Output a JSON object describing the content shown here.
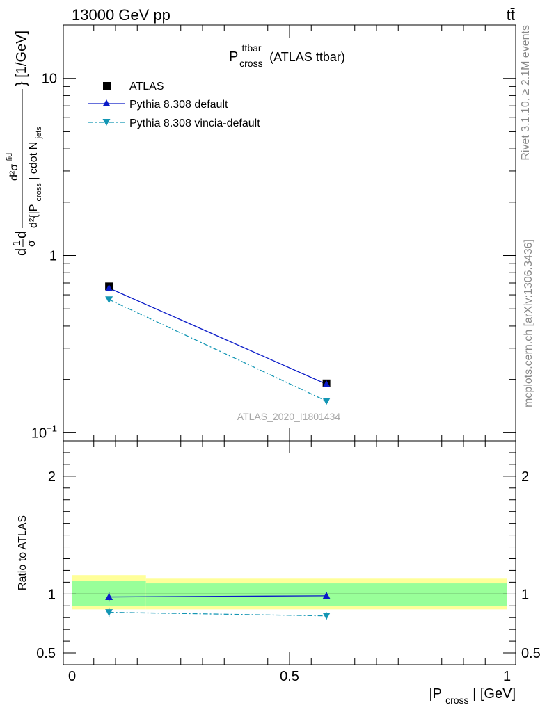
{
  "header": {
    "left": "13000 GeV pp",
    "right": "tt̄"
  },
  "title": {
    "main": "P",
    "sup": "ttbar",
    "sub": "cross",
    "suffix": "(ATLAS ttbar)"
  },
  "side_text": {
    "rivet": "Rivet 3.1.10, ≥ 2.1M events",
    "mcplots": "mcplots.cern.ch [arXiv:1306.3436]"
  },
  "analysis_id": "ATLAS_2020_I1801434",
  "colors": {
    "data": "#000000",
    "default": "#0a1bc8",
    "vincia": "#1396b4",
    "band_inner": "#99ff99",
    "band_outer": "#ffff99"
  },
  "chart_data": [
    {
      "type": "scatter",
      "panel": "main",
      "ylabel": {
        "part1": "d",
        "frac_num": "1",
        "frac_den": "σ",
        "part2": "d",
        "inner_num": "d²σ",
        "inner_num_sup": "fid",
        "inner_den": "d²{|P",
        "inner_den_sub": "cross",
        "inner_den_rest": "| cdot N",
        "inner_den_sub2": "jets",
        "unit": "} [1/GeV]"
      },
      "yscale": "log",
      "ylim": [
        0.09,
        20
      ],
      "xlim": [
        -0.02,
        1.02
      ],
      "ytick_labels": [
        {
          "v": 0.1,
          "base": "10",
          "exp": "−1"
        },
        {
          "v": 1,
          "base": "1",
          "exp": ""
        },
        {
          "v": 10,
          "base": "10",
          "exp": ""
        }
      ],
      "legend_position": "top-left",
      "series": [
        {
          "name": "ATLAS",
          "key": "data",
          "marker": "square",
          "line": "none",
          "x": [
            0.085,
            0.585
          ],
          "y": [
            0.67,
            0.19
          ]
        },
        {
          "name": "Pythia 8.308 default",
          "key": "default",
          "marker": "triangle-up",
          "line": "solid",
          "x": [
            0.085,
            0.585
          ],
          "y": [
            0.655,
            0.188
          ]
        },
        {
          "name": "Pythia 8.308 vincia-default",
          "key": "vincia",
          "marker": "triangle-down",
          "line": "dashdot",
          "x": [
            0.085,
            0.585
          ],
          "y": [
            0.565,
            0.151
          ]
        }
      ]
    },
    {
      "type": "scatter",
      "panel": "ratio",
      "ylabel": "Ratio to ATLAS",
      "xlabel": {
        "main": "|P",
        "sub": "cross",
        "rest": "| [GeV]"
      },
      "ylim": [
        0.4,
        2.3
      ],
      "xlim": [
        -0.02,
        1.02
      ],
      "ytick_labels": [
        {
          "v": 0.5,
          "label": "0.5"
        },
        {
          "v": 1,
          "label": "1"
        },
        {
          "v": 2,
          "label": "2"
        }
      ],
      "xtick_labels": [
        {
          "v": 0,
          "label": "0"
        },
        {
          "v": 0.5,
          "label": "0.5"
        },
        {
          "v": 1,
          "label": "1"
        }
      ],
      "bands": [
        {
          "x0": 0.0,
          "x1": 0.17,
          "inner": [
            0.9,
            1.11
          ],
          "outer": [
            0.87,
            1.16
          ]
        },
        {
          "x0": 0.17,
          "x1": 1.0,
          "inner": [
            0.9,
            1.09
          ],
          "outer": [
            0.87,
            1.13
          ]
        }
      ],
      "series": [
        {
          "name": "Pythia 8.308 default",
          "key": "default",
          "marker": "triangle-up",
          "line": "solid",
          "x": [
            0.085,
            0.585
          ],
          "y": [
            0.975,
            0.985
          ],
          "err": [
            0.04,
            0.03
          ]
        },
        {
          "name": "Pythia 8.308 vincia-default",
          "key": "vincia",
          "marker": "triangle-down",
          "line": "dashdot",
          "x": [
            0.085,
            0.585
          ],
          "y": [
            0.845,
            0.815
          ],
          "err": [
            0.04,
            0.03
          ]
        }
      ]
    }
  ]
}
